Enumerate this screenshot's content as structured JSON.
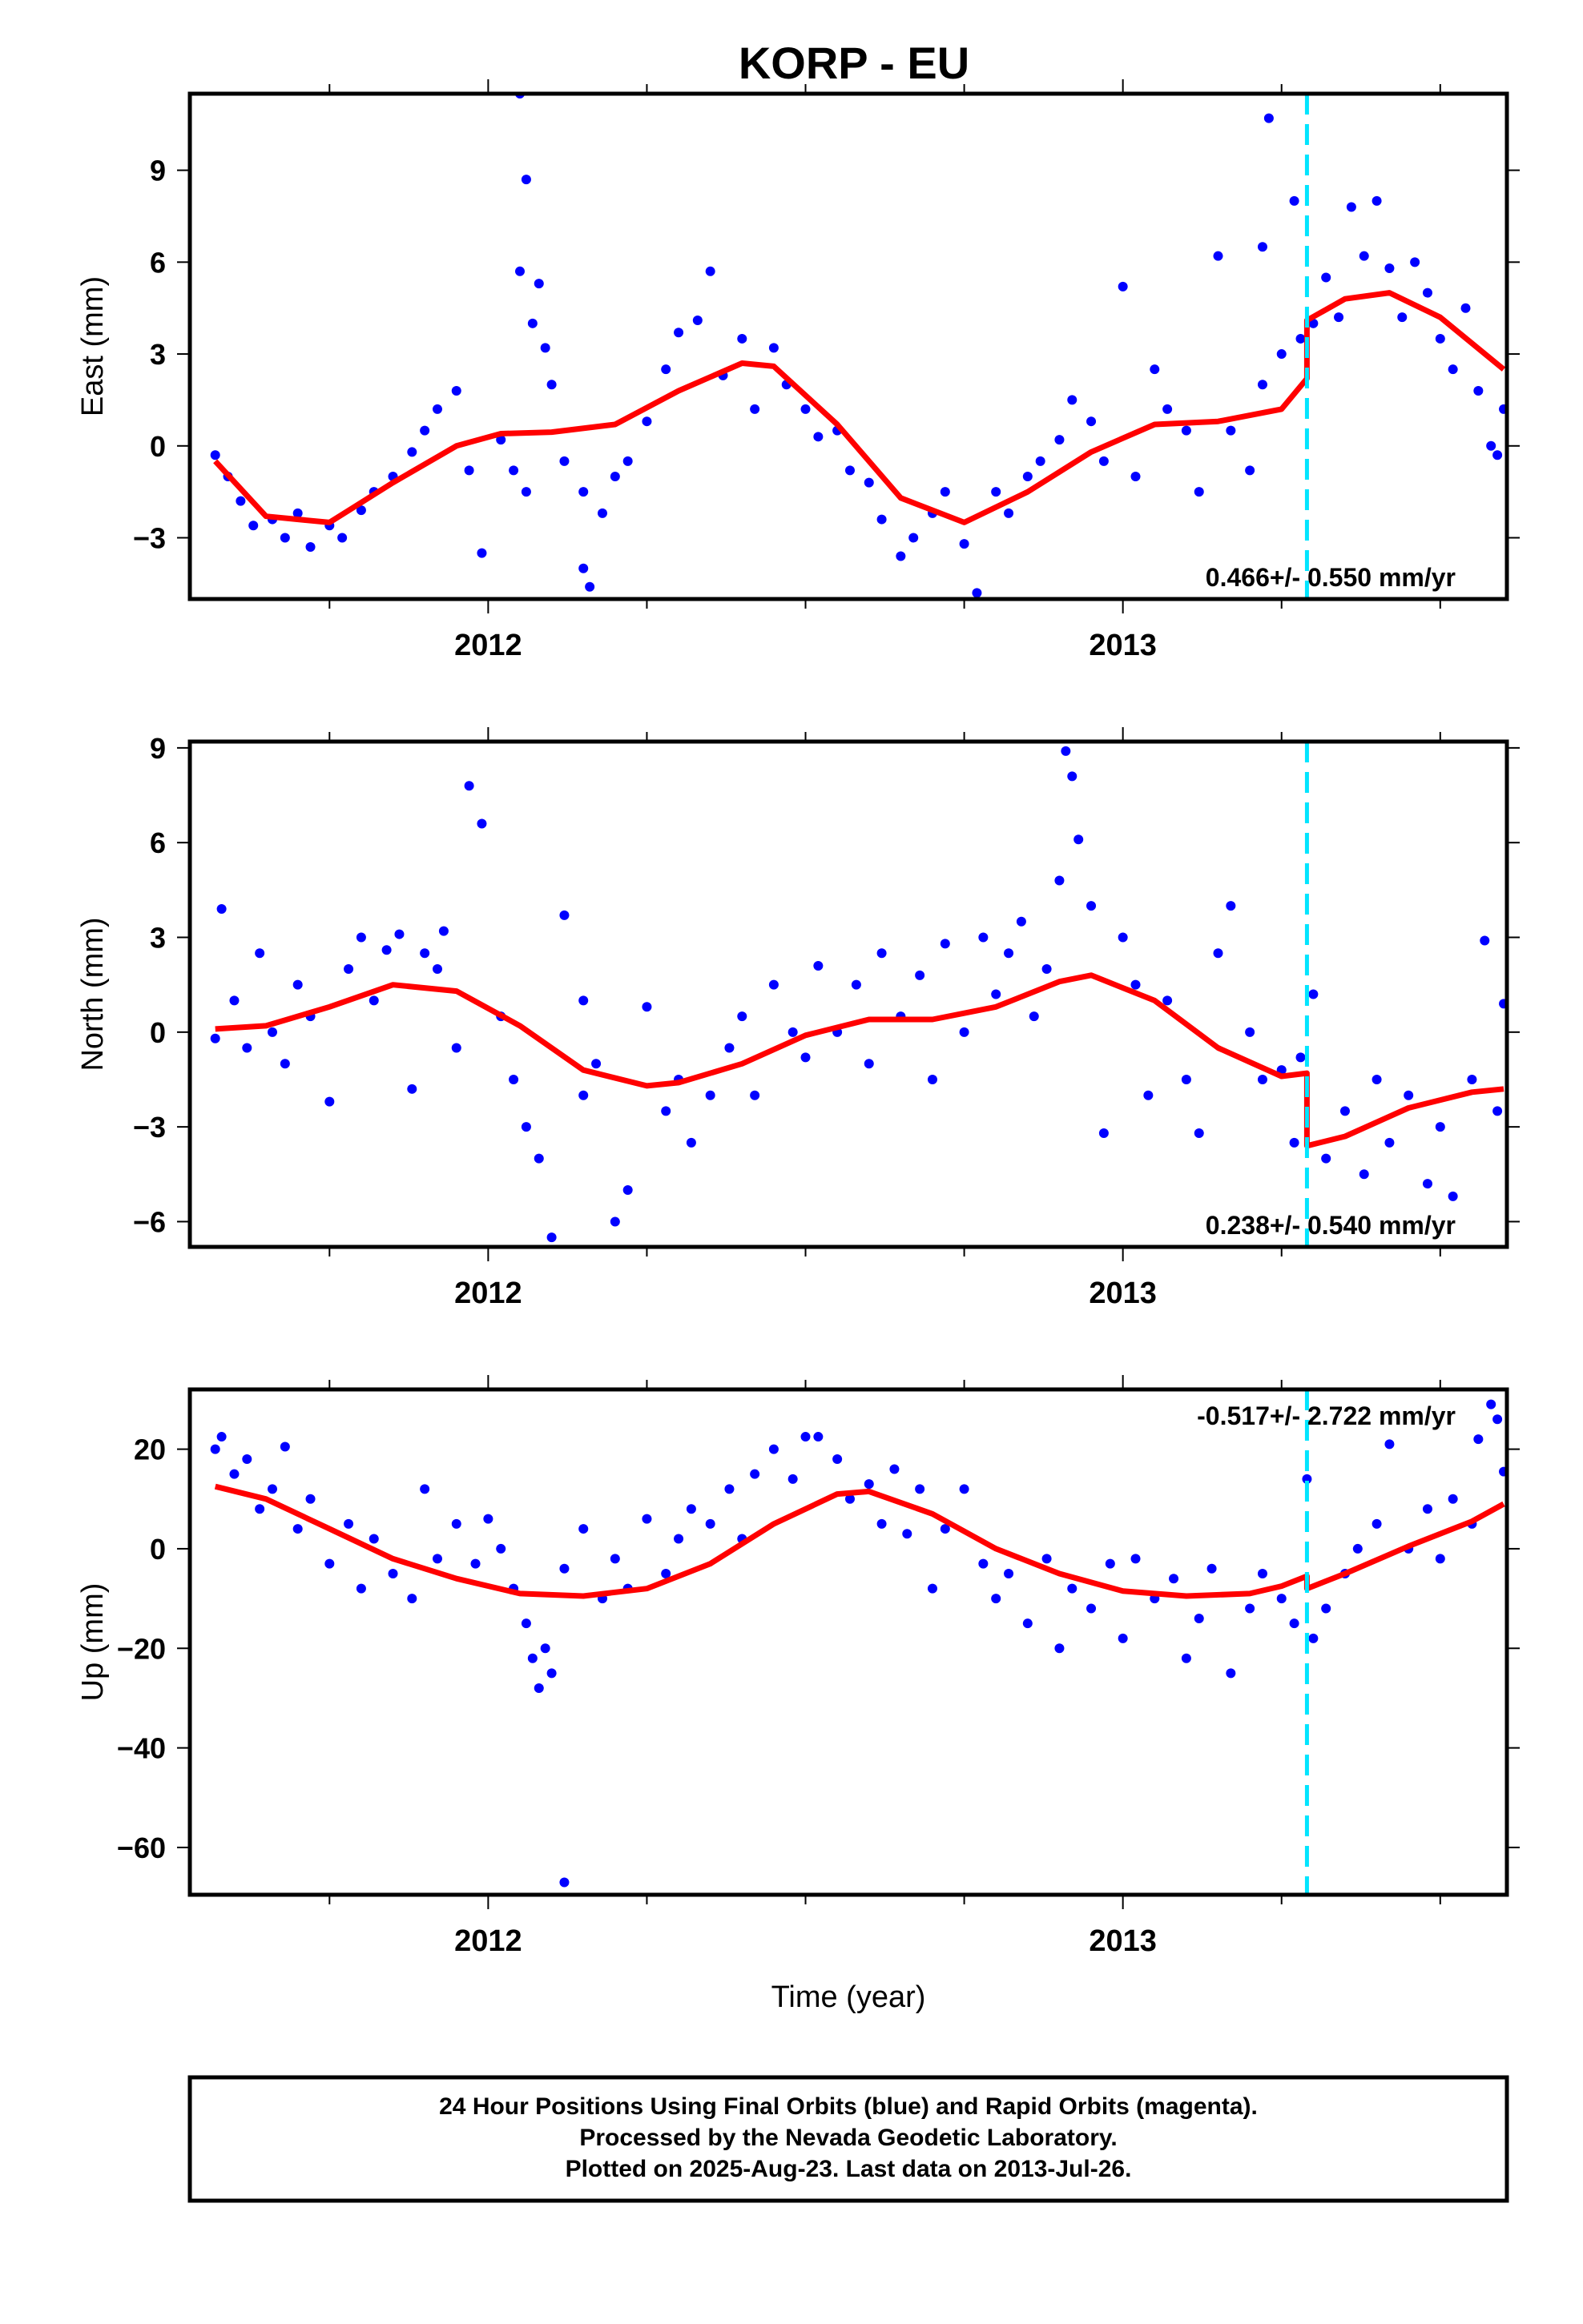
{
  "title": "KORP - EU",
  "footer": {
    "lines": [
      "24 Hour Positions Using Final Orbits (blue) and Rapid Orbits (magenta).",
      "Processed by the Nevada Geodetic Laboratory.",
      "Plotted on 2025-Aug-23. Last data on 2013-Jul-26."
    ]
  },
  "colors": {
    "final": "#0000ff",
    "model": "#ff0000",
    "step": "#00e5ff",
    "axis": "#000000"
  },
  "chart_data": [
    {
      "type": "scatter",
      "name": "east-panel",
      "ylabel": "East (mm)",
      "xlabel": "",
      "rate_text": "0.466+/- 0.550 mm/yr",
      "rate_position": "bottom-right",
      "xlim": [
        2011.53,
        2013.605
      ],
      "ylim": [
        -5.0,
        11.5
      ],
      "xticks": [
        2012,
        2013
      ],
      "xtick_labels": [
        "2012",
        "2013"
      ],
      "yticks": [
        -3,
        0,
        3,
        6,
        9
      ],
      "ytick_labels": [
        "−3",
        "0",
        "3",
        "6",
        "9"
      ],
      "step_epoch": 2013.29,
      "model": {
        "x": [
          2011.57,
          2011.65,
          2011.75,
          2011.85,
          2011.95,
          2012.02,
          2012.1,
          2012.2,
          2012.3,
          2012.4,
          2012.45,
          2012.55,
          2012.65,
          2012.75,
          2012.85,
          2012.95,
          2013.05,
          2013.15,
          2013.25,
          2013.29,
          2013.29,
          2013.35,
          2013.42,
          2013.5,
          2013.6
        ],
        "y": [
          -0.5,
          -2.3,
          -2.5,
          -1.2,
          0.0,
          0.4,
          0.45,
          0.7,
          1.8,
          2.7,
          2.6,
          0.7,
          -1.7,
          -2.5,
          -1.5,
          -0.2,
          0.7,
          0.8,
          1.2,
          2.2,
          4.1,
          4.8,
          5.0,
          4.2,
          2.5
        ]
      },
      "points": {
        "x": [
          2011.57,
          2011.59,
          2011.61,
          2011.63,
          2011.66,
          2011.68,
          2011.7,
          2011.72,
          2011.75,
          2011.77,
          2011.8,
          2011.82,
          2011.85,
          2011.88,
          2011.9,
          2011.92,
          2011.95,
          2011.97,
          2011.99,
          2012.02,
          2012.04,
          2012.06,
          2012.05,
          2012.05,
          2012.06,
          2012.07,
          2012.08,
          2012.09,
          2012.1,
          2012.12,
          2012.15,
          2012.15,
          2012.16,
          2012.18,
          2012.2,
          2012.22,
          2012.25,
          2012.28,
          2012.3,
          2012.33,
          2012.35,
          2012.37,
          2012.4,
          2012.42,
          2012.45,
          2012.47,
          2012.5,
          2012.52,
          2012.55,
          2012.57,
          2012.6,
          2012.62,
          2012.65,
          2012.67,
          2012.7,
          2012.72,
          2012.75,
          2012.77,
          2012.8,
          2012.82,
          2012.85,
          2012.87,
          2012.9,
          2012.92,
          2012.95,
          2012.97,
          2013.0,
          2013.02,
          2013.05,
          2013.07,
          2013.1,
          2013.12,
          2013.15,
          2013.17,
          2013.2,
          2013.22,
          2013.22,
          2013.23,
          2013.25,
          2013.27,
          2013.28,
          2013.3,
          2013.32,
          2013.34,
          2013.36,
          2013.38,
          2013.4,
          2013.42,
          2013.44,
          2013.46,
          2013.48,
          2013.5,
          2013.52,
          2013.54,
          2013.56,
          2013.58,
          2013.59,
          2013.6
        ],
        "y": [
          -0.3,
          -1.0,
          -1.8,
          -2.6,
          -2.4,
          -3.0,
          -2.2,
          -3.3,
          -2.6,
          -3.0,
          -2.1,
          -1.5,
          -1.0,
          -0.2,
          0.5,
          1.2,
          1.8,
          -0.8,
          -3.5,
          0.2,
          -0.8,
          -1.5,
          5.7,
          11.5,
          8.7,
          4.0,
          5.3,
          3.2,
          2.0,
          -0.5,
          -1.5,
          -4.0,
          -4.6,
          -2.2,
          -1.0,
          -0.5,
          0.8,
          2.5,
          3.7,
          4.1,
          5.7,
          2.3,
          3.5,
          1.2,
          3.2,
          2.0,
          1.2,
          0.3,
          0.5,
          -0.8,
          -1.2,
          -2.4,
          -3.6,
          -3.0,
          -2.2,
          -1.5,
          -3.2,
          -4.8,
          -1.5,
          -2.2,
          -1.0,
          -0.5,
          0.2,
          1.5,
          0.8,
          -0.5,
          5.2,
          -1.0,
          2.5,
          1.2,
          0.5,
          -1.5,
          6.2,
          0.5,
          -0.8,
          2.0,
          6.5,
          10.7,
          3.0,
          8.0,
          3.5,
          4.0,
          5.5,
          4.2,
          7.8,
          6.2,
          8.0,
          5.8,
          4.2,
          6.0,
          5.0,
          3.5,
          2.5,
          4.5,
          1.8,
          0.0,
          -0.3,
          1.2
        ]
      }
    },
    {
      "type": "scatter",
      "name": "north-panel",
      "ylabel": "North (mm)",
      "xlabel": "",
      "rate_text": "0.238+/- 0.540 mm/yr",
      "rate_position": "bottom-right",
      "xlim": [
        2011.53,
        2013.605
      ],
      "ylim": [
        -6.8,
        9.2
      ],
      "xticks": [
        2012,
        2013
      ],
      "xtick_labels": [
        "2012",
        "2013"
      ],
      "yticks": [
        -6,
        -3,
        0,
        3,
        6,
        9
      ],
      "ytick_labels": [
        "−6",
        "−3",
        "0",
        "3",
        "6",
        "9"
      ],
      "step_epoch": 2013.29,
      "model": {
        "x": [
          2011.57,
          2011.65,
          2011.75,
          2011.85,
          2011.95,
          2012.05,
          2012.15,
          2012.25,
          2012.3,
          2012.4,
          2012.5,
          2012.6,
          2012.7,
          2012.8,
          2012.9,
          2012.95,
          2013.05,
          2013.15,
          2013.25,
          2013.29,
          2013.29,
          2013.35,
          2013.45,
          2013.55,
          2013.6
        ],
        "y": [
          0.1,
          0.2,
          0.8,
          1.5,
          1.3,
          0.2,
          -1.2,
          -1.7,
          -1.6,
          -1.0,
          -0.1,
          0.4,
          0.4,
          0.8,
          1.6,
          1.8,
          1.0,
          -0.5,
          -1.4,
          -1.3,
          -3.6,
          -3.3,
          -2.4,
          -1.9,
          -1.8
        ]
      },
      "points": {
        "x": [
          2011.57,
          2011.58,
          2011.6,
          2011.62,
          2011.64,
          2011.66,
          2011.68,
          2011.7,
          2011.72,
          2011.75,
          2011.78,
          2011.8,
          2011.82,
          2011.84,
          2011.86,
          2011.88,
          2011.9,
          2011.92,
          2011.93,
          2011.95,
          2011.97,
          2011.99,
          2012.02,
          2012.04,
          2012.06,
          2012.08,
          2012.1,
          2012.12,
          2012.15,
          2012.15,
          2012.17,
          2012.2,
          2012.22,
          2012.25,
          2012.28,
          2012.3,
          2012.32,
          2012.35,
          2012.38,
          2012.4,
          2012.42,
          2012.45,
          2012.48,
          2012.5,
          2012.52,
          2012.55,
          2012.58,
          2012.6,
          2012.62,
          2012.65,
          2012.68,
          2012.7,
          2012.72,
          2012.75,
          2012.78,
          2012.8,
          2012.82,
          2012.84,
          2012.86,
          2012.88,
          2012.9,
          2012.91,
          2012.92,
          2012.93,
          2012.95,
          2012.97,
          2013.0,
          2013.02,
          2013.04,
          2013.07,
          2013.1,
          2013.12,
          2013.15,
          2013.17,
          2013.2,
          2013.22,
          2013.25,
          2013.27,
          2013.28,
          2013.3,
          2013.32,
          2013.35,
          2013.38,
          2013.4,
          2013.42,
          2013.45,
          2013.48,
          2013.5,
          2013.52,
          2013.55,
          2013.57,
          2013.59,
          2013.6
        ],
        "y": [
          -0.2,
          3.9,
          1.0,
          -0.5,
          2.5,
          0.0,
          -1.0,
          1.5,
          0.5,
          -2.2,
          2.0,
          3.0,
          1.0,
          2.6,
          3.1,
          -1.8,
          2.5,
          2.0,
          3.2,
          -0.5,
          7.8,
          6.6,
          0.5,
          -1.5,
          -3.0,
          -4.0,
          -6.5,
          3.7,
          -2.0,
          1.0,
          -1.0,
          -6.0,
          -5.0,
          0.8,
          -2.5,
          -1.5,
          -3.5,
          -2.0,
          -0.5,
          0.5,
          -2.0,
          1.5,
          0.0,
          -0.8,
          2.1,
          0.0,
          1.5,
          -1.0,
          2.5,
          0.5,
          1.8,
          -1.5,
          2.8,
          0.0,
          3.0,
          1.2,
          2.5,
          3.5,
          0.5,
          2.0,
          4.8,
          8.9,
          8.1,
          6.1,
          4.0,
          -3.2,
          3.0,
          1.5,
          -2.0,
          1.0,
          -1.5,
          -3.2,
          2.5,
          4.0,
          0.0,
          -1.5,
          -1.2,
          -3.5,
          -0.8,
          1.2,
          -4.0,
          -2.5,
          -4.5,
          -1.5,
          -3.5,
          -2.0,
          -4.8,
          -3.0,
          -5.2,
          -1.5,
          2.9,
          -2.5,
          0.9
        ]
      }
    },
    {
      "type": "scatter",
      "name": "up-panel",
      "ylabel": "Up (mm)",
      "xlabel": "Time (year)",
      "rate_text": "-0.517+/- 2.722 mm/yr",
      "rate_position": "top-right",
      "xlim": [
        2011.53,
        2013.605
      ],
      "ylim": [
        -69.5,
        32.0
      ],
      "xticks": [
        2012,
        2013
      ],
      "xtick_labels": [
        "2012",
        "2013"
      ],
      "yticks": [
        -60,
        -40,
        -20,
        0,
        20
      ],
      "ytick_labels": [
        "−60",
        "−40",
        "−20",
        "0",
        "20"
      ],
      "step_epoch": 2013.29,
      "model": {
        "x": [
          2011.57,
          2011.65,
          2011.75,
          2011.85,
          2011.95,
          2012.05,
          2012.15,
          2012.25,
          2012.35,
          2012.45,
          2012.55,
          2012.6,
          2012.7,
          2012.8,
          2012.9,
          2013.0,
          2013.1,
          2013.2,
          2013.25,
          2013.29,
          2013.29,
          2013.35,
          2013.45,
          2013.55,
          2013.6
        ],
        "y": [
          12.5,
          10.0,
          4.0,
          -2.0,
          -6.0,
          -9.0,
          -9.5,
          -8.0,
          -3.0,
          5.0,
          11.0,
          11.5,
          7.0,
          0.0,
          -5.0,
          -8.5,
          -9.5,
          -9.0,
          -7.5,
          -5.5,
          -8.0,
          -5.0,
          0.5,
          5.5,
          9.0
        ]
      },
      "points": {
        "x": [
          2011.57,
          2011.58,
          2011.6,
          2011.62,
          2011.64,
          2011.66,
          2011.68,
          2011.7,
          2011.72,
          2011.75,
          2011.78,
          2011.8,
          2011.82,
          2011.85,
          2011.88,
          2011.9,
          2011.92,
          2011.95,
          2011.98,
          2012.0,
          2012.02,
          2012.04,
          2012.06,
          2012.07,
          2012.08,
          2012.09,
          2012.1,
          2012.12,
          2012.12,
          2012.15,
          2012.18,
          2012.2,
          2012.22,
          2012.25,
          2012.28,
          2012.3,
          2012.32,
          2012.35,
          2012.38,
          2012.4,
          2012.42,
          2012.45,
          2012.48,
          2012.5,
          2012.52,
          2012.55,
          2012.57,
          2012.6,
          2012.62,
          2012.64,
          2012.66,
          2012.68,
          2012.7,
          2012.72,
          2012.75,
          2012.78,
          2012.8,
          2012.82,
          2012.85,
          2012.88,
          2012.9,
          2012.92,
          2012.95,
          2012.98,
          2013.0,
          2013.02,
          2013.05,
          2013.08,
          2013.1,
          2013.12,
          2013.14,
          2013.17,
          2013.2,
          2013.22,
          2013.25,
          2013.27,
          2013.29,
          2013.3,
          2013.32,
          2013.35,
          2013.37,
          2013.4,
          2013.42,
          2013.45,
          2013.48,
          2013.5,
          2013.52,
          2013.55,
          2013.56,
          2013.58,
          2013.59,
          2013.6
        ],
        "y": [
          20.0,
          22.5,
          15.0,
          18.0,
          8.0,
          12.0,
          20.5,
          4.0,
          10.0,
          -3.0,
          5.0,
          -8.0,
          2.0,
          -5.0,
          -10.0,
          12.0,
          -2.0,
          5.0,
          -3.0,
          6.0,
          0.0,
          -8.0,
          -15.0,
          -22.0,
          -28.0,
          -20.0,
          -25.0,
          -4.0,
          -67.0,
          4.0,
          -10.0,
          -2.0,
          -8.0,
          6.0,
          -5.0,
          2.0,
          8.0,
          5.0,
          12.0,
          2.0,
          15.0,
          20.0,
          14.0,
          22.5,
          22.5,
          18.0,
          10.0,
          13.0,
          5.0,
          16.0,
          3.0,
          12.0,
          -8.0,
          4.0,
          12.0,
          -3.0,
          -10.0,
          -5.0,
          -15.0,
          -2.0,
          -20.0,
          -8.0,
          -12.0,
          -3.0,
          -18.0,
          -2.0,
          -10.0,
          -6.0,
          -22.0,
          -14.0,
          -4.0,
          -25.0,
          -12.0,
          -5.0,
          -10.0,
          -15.0,
          14.0,
          -18.0,
          -12.0,
          -5.0,
          0.0,
          5.0,
          21.0,
          0.0,
          8.0,
          -2.0,
          10.0,
          5.0,
          22.0,
          29.0,
          26.0,
          15.5
        ]
      }
    }
  ]
}
